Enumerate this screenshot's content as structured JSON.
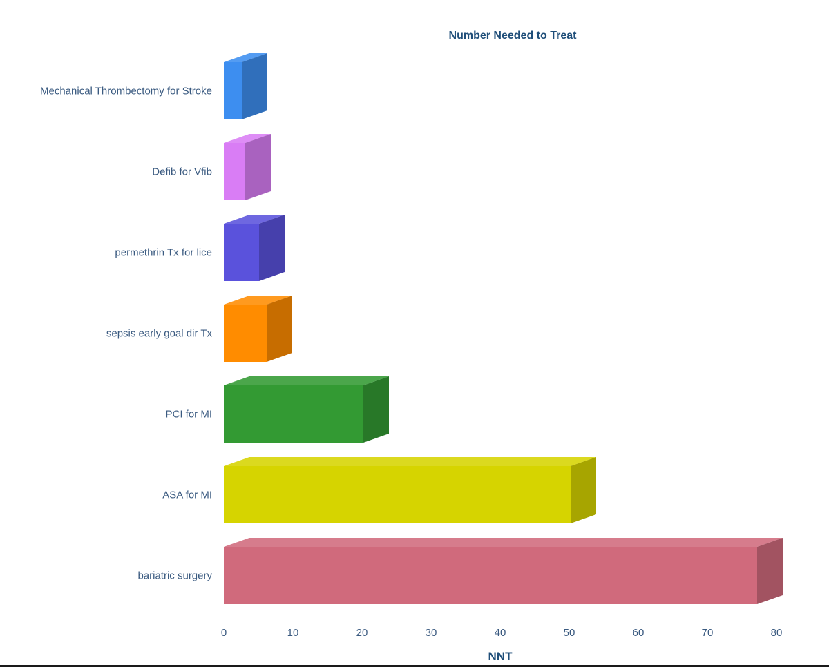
{
  "chart_data": {
    "type": "bar",
    "orientation": "horizontal",
    "style": "3d",
    "title": "Number Needed to Treat",
    "xlabel": "NNT",
    "ylabel": "",
    "xlim": [
      0,
      80
    ],
    "xticks": [
      0,
      10,
      20,
      30,
      40,
      50,
      60,
      70,
      80
    ],
    "grid": false,
    "categories": [
      "Mechanical Thrombectomy for Stroke",
      "Defib for Vfib",
      "permethrin Tx for lice",
      "sepsis early goal dir Tx",
      "PCI for MI",
      "ASA for MI",
      "bariatric surgery"
    ],
    "values": [
      2.6,
      3.1,
      5.1,
      6.2,
      20.2,
      50.2,
      77.2
    ],
    "colors": [
      "#3d8ef0",
      "#d97df5",
      "#5a52dc",
      "#ff8c00",
      "#339a33",
      "#d6d400",
      "#d06a7c"
    ]
  }
}
